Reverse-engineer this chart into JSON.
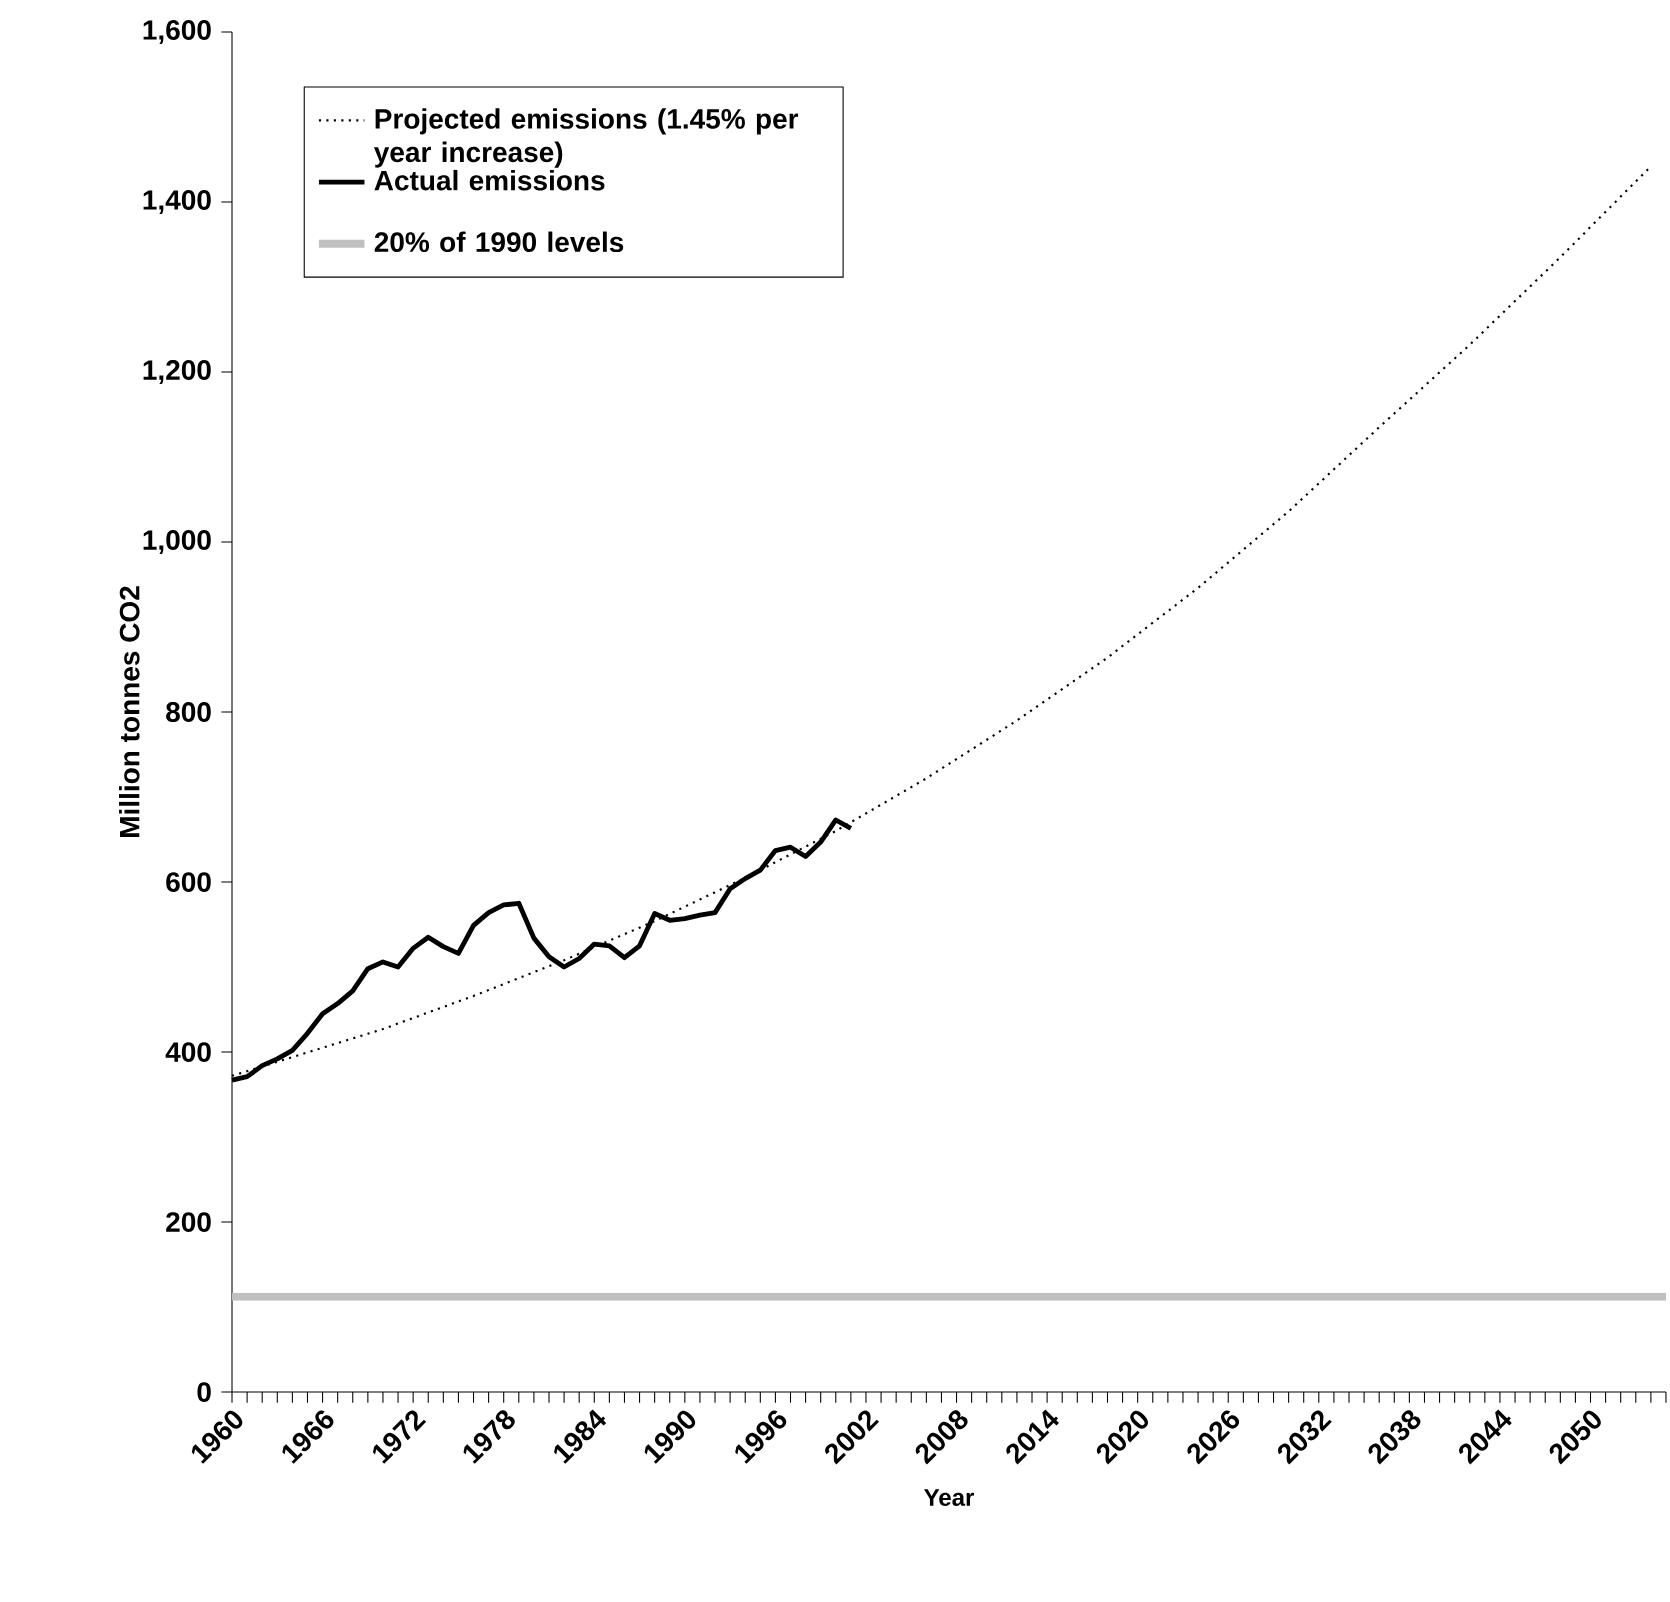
{
  "chart_data": {
    "type": "line",
    "xlabel": "Year",
    "ylabel": "Million tonnes CO2",
    "xlim": [
      1960,
      2055
    ],
    "ylim": [
      0,
      1600
    ],
    "yticks": [
      0,
      200,
      400,
      600,
      800,
      {
        "value": 1000,
        "label": "1,000"
      },
      {
        "value": 1200,
        "label": "1,200"
      },
      {
        "value": 1400,
        "label": "1,400"
      },
      {
        "value": 1600,
        "label": "1,600"
      }
    ],
    "xticks": [
      1960,
      {
        "value": 1961,
        "label": null
      },
      {
        "value": 1962,
        "label": null
      },
      {
        "value": 1963,
        "label": null
      },
      {
        "value": 1964,
        "label": null
      },
      {
        "value": 1965,
        "label": null
      },
      1966,
      {
        "value": 1967,
        "label": null
      },
      {
        "value": 1968,
        "label": null
      },
      {
        "value": 1969,
        "label": null
      },
      {
        "value": 1970,
        "label": null
      },
      {
        "value": 1971,
        "label": null
      },
      1972,
      {
        "value": 1973,
        "label": null
      },
      {
        "value": 1974,
        "label": null
      },
      {
        "value": 1975,
        "label": null
      },
      {
        "value": 1976,
        "label": null
      },
      {
        "value": 1977,
        "label": null
      },
      1978,
      {
        "value": 1979,
        "label": null
      },
      {
        "value": 1980,
        "label": null
      },
      {
        "value": 1981,
        "label": null
      },
      {
        "value": 1982,
        "label": null
      },
      {
        "value": 1983,
        "label": null
      },
      1984,
      {
        "value": 1985,
        "label": null
      },
      {
        "value": 1986,
        "label": null
      },
      {
        "value": 1987,
        "label": null
      },
      {
        "value": 1988,
        "label": null
      },
      {
        "value": 1989,
        "label": null
      },
      1990,
      {
        "value": 1991,
        "label": null
      },
      {
        "value": 1992,
        "label": null
      },
      {
        "value": 1993,
        "label": null
      },
      {
        "value": 1994,
        "label": null
      },
      {
        "value": 1995,
        "label": null
      },
      1996,
      {
        "value": 1997,
        "label": null
      },
      {
        "value": 1998,
        "label": null
      },
      {
        "value": 1999,
        "label": null
      },
      {
        "value": 2000,
        "label": null
      },
      {
        "value": 2001,
        "label": null
      },
      2002,
      {
        "value": 2003,
        "label": null
      },
      {
        "value": 2004,
        "label": null
      },
      {
        "value": 2005,
        "label": null
      },
      {
        "value": 2006,
        "label": null
      },
      {
        "value": 2007,
        "label": null
      },
      2008,
      {
        "value": 2009,
        "label": null
      },
      {
        "value": 2010,
        "label": null
      },
      {
        "value": 2011,
        "label": null
      },
      {
        "value": 2012,
        "label": null
      },
      {
        "value": 2013,
        "label": null
      },
      2014,
      {
        "value": 2015,
        "label": null
      },
      {
        "value": 2016,
        "label": null
      },
      {
        "value": 2017,
        "label": null
      },
      {
        "value": 2018,
        "label": null
      },
      {
        "value": 2019,
        "label": null
      },
      2020,
      {
        "value": 2021,
        "label": null
      },
      {
        "value": 2022,
        "label": null
      },
      {
        "value": 2023,
        "label": null
      },
      {
        "value": 2024,
        "label": null
      },
      {
        "value": 2025,
        "label": null
      },
      2026,
      {
        "value": 2027,
        "label": null
      },
      {
        "value": 2028,
        "label": null
      },
      {
        "value": 2029,
        "label": null
      },
      {
        "value": 2030,
        "label": null
      },
      {
        "value": 2031,
        "label": null
      },
      2032,
      {
        "value": 2033,
        "label": null
      },
      {
        "value": 2034,
        "label": null
      },
      {
        "value": 2035,
        "label": null
      },
      {
        "value": 2036,
        "label": null
      },
      {
        "value": 2037,
        "label": null
      },
      2038,
      {
        "value": 2039,
        "label": null
      },
      {
        "value": 2040,
        "label": null
      },
      {
        "value": 2041,
        "label": null
      },
      {
        "value": 2042,
        "label": null
      },
      {
        "value": 2043,
        "label": null
      },
      2044,
      {
        "value": 2045,
        "label": null
      },
      {
        "value": 2046,
        "label": null
      },
      {
        "value": 2047,
        "label": null
      },
      {
        "value": 2048,
        "label": null
      },
      {
        "value": 2049,
        "label": null
      },
      2050,
      {
        "value": 2051,
        "label": null
      },
      {
        "value": 2052,
        "label": null
      },
      {
        "value": 2053,
        "label": null
      },
      {
        "value": 2054,
        "label": null
      },
      {
        "value": 2055,
        "label": null
      }
    ],
    "grid": false,
    "legend": "top left",
    "marker": "none",
    "series": [
      {
        "name": "Projected emissions (1.45% per year increase)",
        "color": "#000000",
        "line_style": "dotted",
        "x": [
          1960,
          1964,
          1970,
          1976,
          1982,
          1988,
          1994,
          2000,
          2006,
          2012,
          2018,
          2024,
          2030,
          2036,
          2042,
          2048,
          2054
        ],
        "values": [
          372,
          394,
          427,
          466,
          508,
          554,
          605,
          660,
          722,
          790,
          864,
          946,
          1036,
          1135,
          1232,
          1335,
          1442
        ]
      },
      {
        "name": "Actual emissions",
        "color": "#000000",
        "line_style": "solid",
        "x": [
          1960,
          1961,
          1962,
          1963,
          1964,
          1965,
          1966,
          1967,
          1968,
          1969,
          1970,
          1971,
          1972,
          1973,
          1974,
          1975,
          1976,
          1977,
          1978,
          1979,
          1980,
          1981,
          1982,
          1983,
          1984,
          1985,
          1986,
          1987,
          1988,
          1989,
          1990,
          1991,
          1992,
          1993,
          1994,
          1995,
          1996,
          1997,
          1998,
          1999,
          2000,
          2001
        ],
        "values": [
          367,
          371,
          384,
          392,
          402,
          422,
          445,
          457,
          472,
          498,
          506,
          500,
          522,
          535,
          524,
          516,
          549,
          564,
          573,
          575,
          534,
          512,
          500,
          510,
          527,
          525,
          511,
          525,
          563,
          555,
          557,
          561,
          564,
          592,
          604,
          614,
          637,
          641,
          630,
          647,
          673,
          663
        ]
      }
    ],
    "ref_lines": [
      {
        "axis": "y",
        "value": 112,
        "label": "20% of 1990 levels",
        "color": "#c0c0c0"
      }
    ]
  }
}
